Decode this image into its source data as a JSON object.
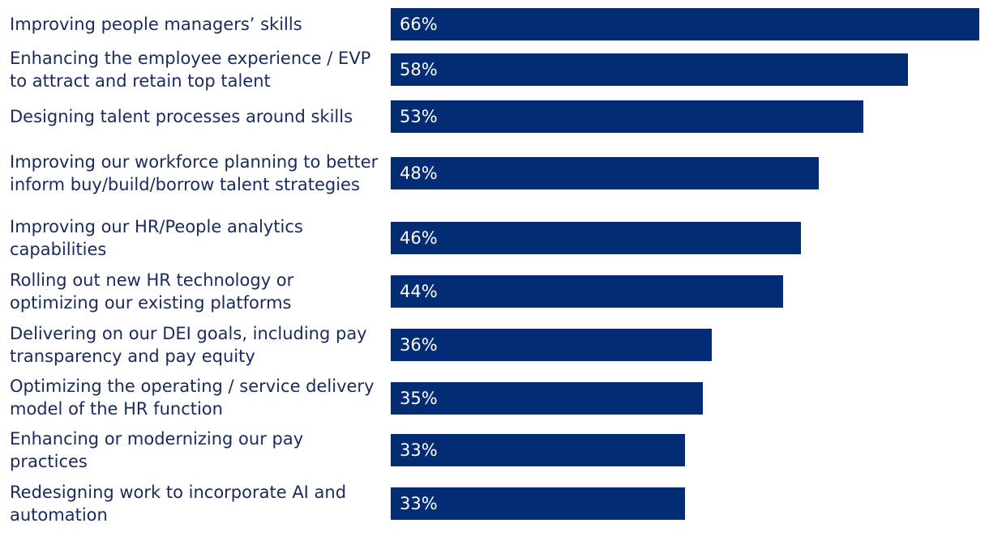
{
  "chart_data": {
    "type": "bar",
    "orientation": "horizontal",
    "categories": [
      "Improving people managers’ skills",
      "Enhancing the employee experience / EVP to attract and retain top talent",
      "Designing talent processes around skills",
      "Improving our workforce planning to better inform buy/build/borrow talent strategies",
      "Improving our HR/People analytics capabilities",
      "Rolling out new HR technology or optimizing our existing platforms",
      "Delivering on our DEI goals, including pay transparency and pay equity",
      "Optimizing the operating / service delivery model of the HR function",
      "Enhancing or modernizing our pay practices",
      "Redesigning work to incorporate AI and automation"
    ],
    "values": [
      66,
      58,
      53,
      48,
      46,
      44,
      36,
      35,
      33,
      33
    ],
    "value_labels": [
      "66%",
      "58%",
      "53%",
      "48%",
      "46%",
      "44%",
      "36%",
      "35%",
      "33%",
      "33%"
    ],
    "unit": "%",
    "xlim": [
      0,
      66
    ],
    "grid": false,
    "legend": "none",
    "bar_color": "#022d74"
  }
}
